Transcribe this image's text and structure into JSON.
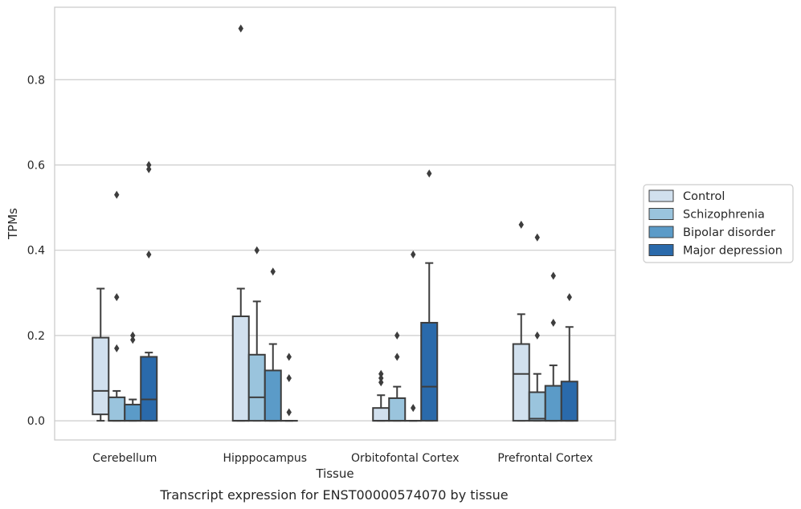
{
  "chart_data": {
    "type": "box",
    "caption": "Transcript expression for ENST00000574070 by tissue",
    "xlabel": "Tissue",
    "ylabel": "TPMs",
    "ylim": [
      -0.045,
      0.97
    ],
    "yticks": [
      "0.0",
      "0.2",
      "0.4",
      "0.6",
      "0.8"
    ],
    "ytick_values": [
      0.0,
      0.2,
      0.4,
      0.6,
      0.8
    ],
    "grid": "horizontal",
    "legend_position": "right",
    "categories": [
      "Cerebellum",
      "Hipppocampus",
      "Orbitofontal Cortex",
      "Prefrontal Cortex"
    ],
    "series": [
      {
        "name": "Control",
        "color": "#d1e0ee",
        "boxes": [
          {
            "whislo": 0.0,
            "q1": 0.015,
            "med": 0.07,
            "q3": 0.195,
            "whishi": 0.31,
            "fliers": []
          },
          {
            "whislo": 0.0,
            "q1": 0.0,
            "med": 0.0,
            "q3": 0.245,
            "whishi": 0.31,
            "fliers": [
              0.92
            ]
          },
          {
            "whislo": 0.0,
            "q1": 0.0,
            "med": 0.0,
            "q3": 0.03,
            "whishi": 0.06,
            "fliers": [
              0.09,
              0.1,
              0.11
            ]
          },
          {
            "whislo": 0.0,
            "q1": 0.0,
            "med": 0.11,
            "q3": 0.18,
            "whishi": 0.25,
            "fliers": [
              0.46
            ]
          }
        ]
      },
      {
        "name": "Schizophrenia",
        "color": "#9ac4dd",
        "boxes": [
          {
            "whislo": 0.0,
            "q1": 0.0,
            "med": 0.0,
            "q3": 0.055,
            "whishi": 0.07,
            "fliers": [
              0.17,
              0.29,
              0.53
            ]
          },
          {
            "whislo": 0.0,
            "q1": 0.0,
            "med": 0.055,
            "q3": 0.155,
            "whishi": 0.28,
            "fliers": [
              0.4
            ]
          },
          {
            "whislo": 0.0,
            "q1": 0.0,
            "med": 0.0,
            "q3": 0.053,
            "whishi": 0.08,
            "fliers": [
              0.15,
              0.2
            ]
          },
          {
            "whislo": 0.0,
            "q1": 0.0,
            "med": 0.005,
            "q3": 0.067,
            "whishi": 0.11,
            "fliers": [
              0.2,
              0.43
            ]
          }
        ]
      },
      {
        "name": "Bipolar disorder",
        "color": "#5b9bc8",
        "boxes": [
          {
            "whislo": 0.0,
            "q1": 0.0,
            "med": 0.0,
            "q3": 0.038,
            "whishi": 0.05,
            "fliers": [
              0.19,
              0.2
            ]
          },
          {
            "whislo": 0.0,
            "q1": 0.0,
            "med": 0.0,
            "q3": 0.118,
            "whishi": 0.18,
            "fliers": [
              0.35
            ]
          },
          {
            "whislo": 0.0,
            "q1": 0.0,
            "med": 0.0,
            "q3": 0.0,
            "whishi": 0.0,
            "fliers": [
              0.03,
              0.39
            ]
          },
          {
            "whislo": 0.0,
            "q1": 0.0,
            "med": 0.0,
            "q3": 0.082,
            "whishi": 0.13,
            "fliers": [
              0.23,
              0.34
            ]
          }
        ]
      },
      {
        "name": "Major depression",
        "color": "#2a6aab",
        "boxes": [
          {
            "whislo": 0.0,
            "q1": 0.0,
            "med": 0.05,
            "q3": 0.15,
            "whishi": 0.16,
            "fliers": [
              0.39,
              0.59,
              0.6
            ]
          },
          {
            "whislo": 0.0,
            "q1": 0.0,
            "med": 0.0,
            "q3": 0.0,
            "whishi": 0.0,
            "fliers": [
              0.02,
              0.1,
              0.15
            ]
          },
          {
            "whislo": 0.0,
            "q1": 0.0,
            "med": 0.08,
            "q3": 0.23,
            "whishi": 0.37,
            "fliers": [
              0.58
            ]
          },
          {
            "whislo": 0.0,
            "q1": 0.0,
            "med": 0.0,
            "q3": 0.092,
            "whishi": 0.22,
            "fliers": [
              0.29
            ]
          }
        ]
      }
    ]
  }
}
